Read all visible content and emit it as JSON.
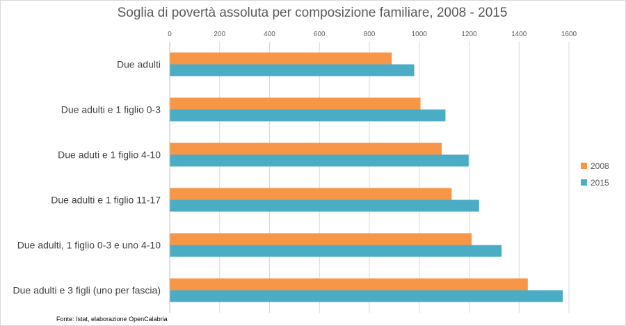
{
  "chart_data": {
    "type": "bar",
    "orientation": "horizontal",
    "title": "Soglia di povertà assoluta per composizione familiare, 2008 - 2015",
    "categories": [
      "Due adulti",
      "Due adulti e 1 figlio 0-3",
      "Due aduti e 1 figlio 4-10",
      "Due adulti e 1 figlio 11-17",
      "Due adulti, 1 figlio 0-3 e uno 4-10",
      "Due adulti e 3 figli (uno per fascia)"
    ],
    "series": [
      {
        "name": "2008",
        "color": "#f79646",
        "values": [
          890,
          1005,
          1090,
          1130,
          1210,
          1435
        ]
      },
      {
        "name": "2015",
        "color": "#4bacc6",
        "values": [
          980,
          1105,
          1198,
          1240,
          1330,
          1575
        ]
      }
    ],
    "xlim": [
      0,
      1600
    ],
    "xticks": [
      0,
      200,
      400,
      600,
      800,
      1000,
      1200,
      1400,
      1600
    ],
    "x_axis_position": "top",
    "grid": true,
    "legend_position": "right"
  },
  "source_note": "Fonte: Istat, elaborazione OpenCalabria"
}
